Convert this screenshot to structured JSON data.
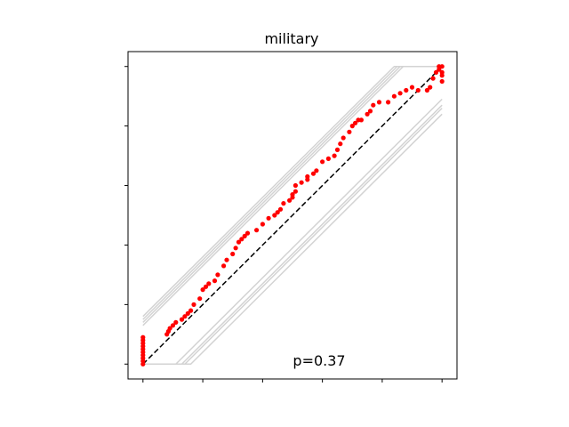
{
  "chart_data": {
    "type": "scatter",
    "title": "military",
    "annotation": "p=0.37",
    "xlim": [
      -0.05,
      1.05
    ],
    "ylim": [
      -0.05,
      1.05
    ],
    "x_ticks": [
      0,
      0.2,
      0.4,
      0.6,
      0.8,
      1.0
    ],
    "y_ticks": [
      0,
      0.2,
      0.4,
      0.6,
      0.8,
      1.0
    ],
    "tick_labels_shown": false,
    "grid": false,
    "colors": {
      "points": "#ff0000",
      "reference": "#000000",
      "envelope": "#d3d3d3"
    },
    "reference_line": {
      "style": "dashed",
      "x": [
        0,
        1
      ],
      "y": [
        0,
        1
      ]
    },
    "envelope_offsets": [
      0.16,
      0.15,
      0.14,
      0.13,
      -0.11,
      -0.13,
      -0.14,
      -0.16
    ],
    "series": [
      {
        "x": [
          0,
          0,
          0,
          0,
          0,
          0,
          0,
          0,
          0,
          0,
          0.08,
          0.085,
          0.09,
          0.1,
          0.11,
          0.13,
          0.14,
          0.15,
          0.16,
          0.17,
          0.19,
          0.2,
          0.21,
          0.22,
          0.24,
          0.25,
          0.27,
          0.28,
          0.3,
          0.31,
          0.32,
          0.33,
          0.34,
          0.35,
          0.38,
          0.4,
          0.42,
          0.44,
          0.45,
          0.46,
          0.47,
          0.49,
          0.5,
          0.5,
          0.51,
          0.51,
          0.53,
          0.55,
          0.55,
          0.57,
          0.58,
          0.6,
          0.62,
          0.64,
          0.65,
          0.66,
          0.67,
          0.69,
          0.7,
          0.71,
          0.72,
          0.73,
          0.75,
          0.76,
          0.77,
          0.79,
          0.82,
          0.84,
          0.86,
          0.88,
          0.9,
          0.92,
          0.95,
          0.96,
          0.97,
          0.98,
          0.99,
          0.99,
          1.0,
          1.0,
          1.0,
          1.0
        ],
        "y": [
          0,
          0.01,
          0.02,
          0.03,
          0.04,
          0.05,
          0.06,
          0.07,
          0.08,
          0.09,
          0.1,
          0.11,
          0.12,
          0.13,
          0.14,
          0.15,
          0.16,
          0.17,
          0.18,
          0.2,
          0.22,
          0.25,
          0.26,
          0.27,
          0.28,
          0.3,
          0.33,
          0.35,
          0.37,
          0.39,
          0.41,
          0.42,
          0.43,
          0.44,
          0.45,
          0.47,
          0.49,
          0.5,
          0.51,
          0.52,
          0.54,
          0.55,
          0.56,
          0.57,
          0.58,
          0.6,
          0.61,
          0.62,
          0.63,
          0.64,
          0.65,
          0.68,
          0.69,
          0.7,
          0.72,
          0.74,
          0.76,
          0.78,
          0.8,
          0.81,
          0.82,
          0.82,
          0.84,
          0.85,
          0.87,
          0.88,
          0.88,
          0.9,
          0.91,
          0.92,
          0.93,
          0.92,
          0.92,
          0.93,
          0.96,
          0.98,
          1.0,
          0.99,
          1.0,
          0.98,
          0.97,
          0.95
        ]
      }
    ]
  }
}
